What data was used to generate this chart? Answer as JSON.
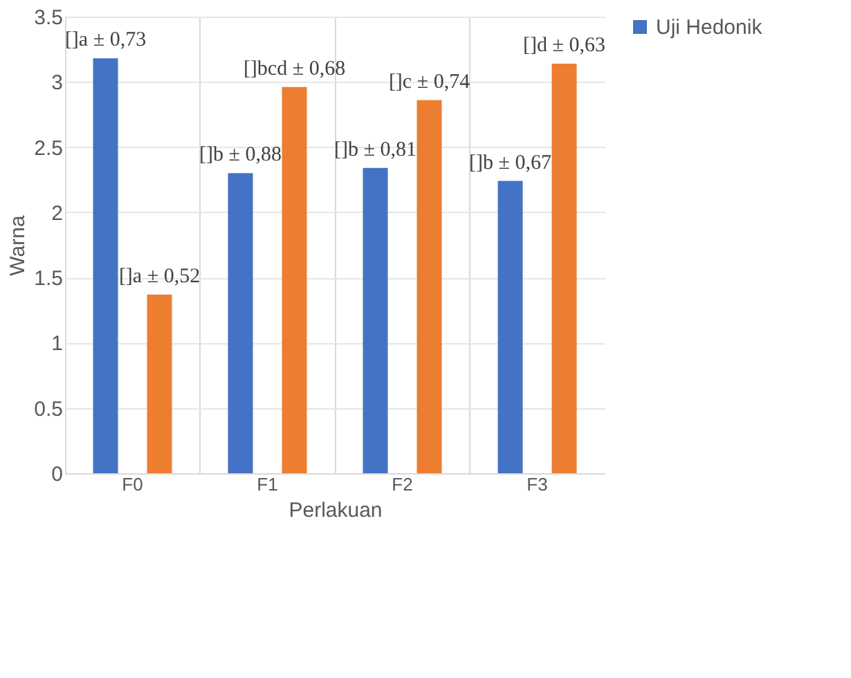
{
  "chart_data": {
    "type": "bar",
    "xlabel": "Perlakuan",
    "ylabel": "Warna",
    "categories": [
      "F0",
      "F1",
      "F2",
      "F3"
    ],
    "series": [
      {
        "name": "Uji Hedonik",
        "color": "#4472c4",
        "values": [
          3.18,
          2.3,
          2.34,
          2.24
        ]
      },
      {
        "color": "#ed7d31",
        "values": [
          1.37,
          2.96,
          2.86,
          3.14
        ]
      }
    ],
    "annotations": [
      "[]a ± 0,73",
      "[]a ± 0,52",
      "[]b ± 0,88",
      "[]bcd ± 0,68",
      "[]b ± 0,81",
      "[]c ± 0,74",
      "[]b ± 0,67",
      "[]d ± 0,63"
    ],
    "ylim": [
      0,
      3.5
    ],
    "yticks": [
      0,
      0.5,
      1,
      1.5,
      2,
      2.5,
      3,
      3.5
    ],
    "grid": true,
    "legend": "right"
  }
}
